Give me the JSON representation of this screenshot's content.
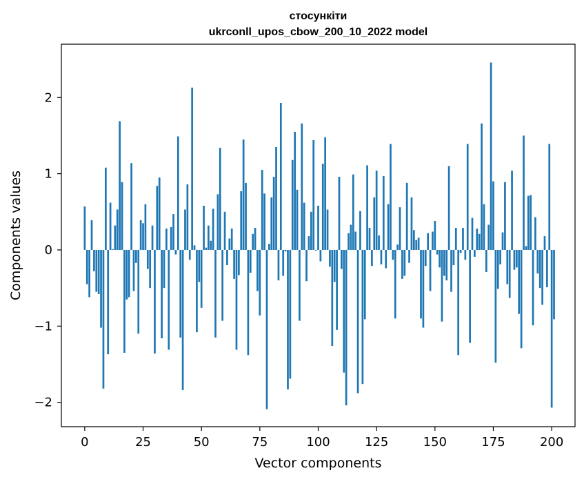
{
  "chart_data": {
    "type": "bar",
    "title_line1": "стосункіти",
    "title_line2": "ukrconll_upos_cbow_200_10_2022 model",
    "xlabel": "Vector components",
    "ylabel": "Components values",
    "xlim": [
      -10,
      210
    ],
    "ylim": [
      -2.32,
      2.7
    ],
    "xticks": [
      0,
      25,
      50,
      75,
      100,
      125,
      150,
      175,
      200
    ],
    "yticks": [
      -2,
      -1,
      0,
      1,
      2
    ],
    "ytick_labels": [
      "−2",
      "−1",
      "0",
      "1",
      "2"
    ],
    "bar_color": "#1f77b4",
    "grid": false,
    "legend": "none",
    "values": [
      0.57,
      -0.45,
      -0.62,
      0.39,
      -0.28,
      -0.55,
      -0.58,
      -1.02,
      -1.82,
      1.08,
      -1.37,
      0.62,
      0.01,
      0.32,
      0.53,
      1.69,
      0.89,
      -1.35,
      -0.65,
      -0.62,
      1.14,
      -0.54,
      -0.17,
      -1.1,
      0.39,
      0.35,
      0.6,
      -0.25,
      -0.5,
      0.32,
      -1.36,
      0.84,
      0.95,
      -1.16,
      -0.5,
      0.28,
      -1.31,
      0.3,
      0.47,
      -0.06,
      1.49,
      -1.15,
      -1.84,
      0.53,
      0.86,
      -0.13,
      2.13,
      0.06,
      -1.08,
      -0.42,
      -0.76,
      0.58,
      0.03,
      0.32,
      0.12,
      0.54,
      -1.15,
      0.73,
      1.34,
      -0.93,
      0.5,
      -0.2,
      0.15,
      0.28,
      -0.38,
      -1.31,
      -0.33,
      0.77,
      1.45,
      0.88,
      -1.38,
      -0.3,
      0.21,
      0.29,
      -0.54,
      -0.86,
      1.05,
      0.74,
      -2.09,
      0.08,
      0.69,
      0.96,
      1.35,
      -0.4,
      1.93,
      -0.34,
      -0.02,
      -1.83,
      -1.69,
      1.18,
      1.55,
      0.79,
      -0.93,
      1.66,
      0.62,
      -0.41,
      0.18,
      0.5,
      1.44,
      -0.01,
      0.58,
      -0.15,
      1.13,
      1.48,
      0.53,
      -0.22,
      -1.26,
      -0.42,
      -1.05,
      0.96,
      -0.25,
      -1.61,
      -2.04,
      0.22,
      0.33,
      0.99,
      0.24,
      -1.88,
      0.51,
      -1.76,
      -0.91,
      1.11,
      0.29,
      -0.21,
      0.69,
      1.04,
      0.19,
      -0.19,
      0.97,
      -0.24,
      0.6,
      1.39,
      -0.13,
      -0.9,
      0.07,
      0.56,
      -0.38,
      -0.34,
      0.88,
      -0.17,
      0.69,
      0.26,
      0.13,
      0.16,
      -0.9,
      -1.02,
      -0.21,
      0.22,
      -0.54,
      0.24,
      0.38,
      -0.06,
      -0.23,
      -0.94,
      -0.34,
      -0.4,
      1.1,
      -0.55,
      -0.2,
      0.29,
      -1.38,
      -0.04,
      0.29,
      -0.13,
      1.39,
      -1.22,
      0.42,
      -0.09,
      0.28,
      0.21,
      1.66,
      0.6,
      -0.29,
      0.33,
      2.46,
      0.9,
      -1.48,
      -0.51,
      -0.19,
      0.23,
      0.89,
      -0.45,
      -0.63,
      1.04,
      -0.26,
      -0.23,
      -0.84,
      -1.29,
      1.5,
      0.05,
      0.71,
      0.72,
      -0.99,
      0.43,
      -0.31,
      -0.5,
      -0.72,
      0.18,
      -0.49,
      1.39,
      -2.07,
      -0.91
    ]
  }
}
